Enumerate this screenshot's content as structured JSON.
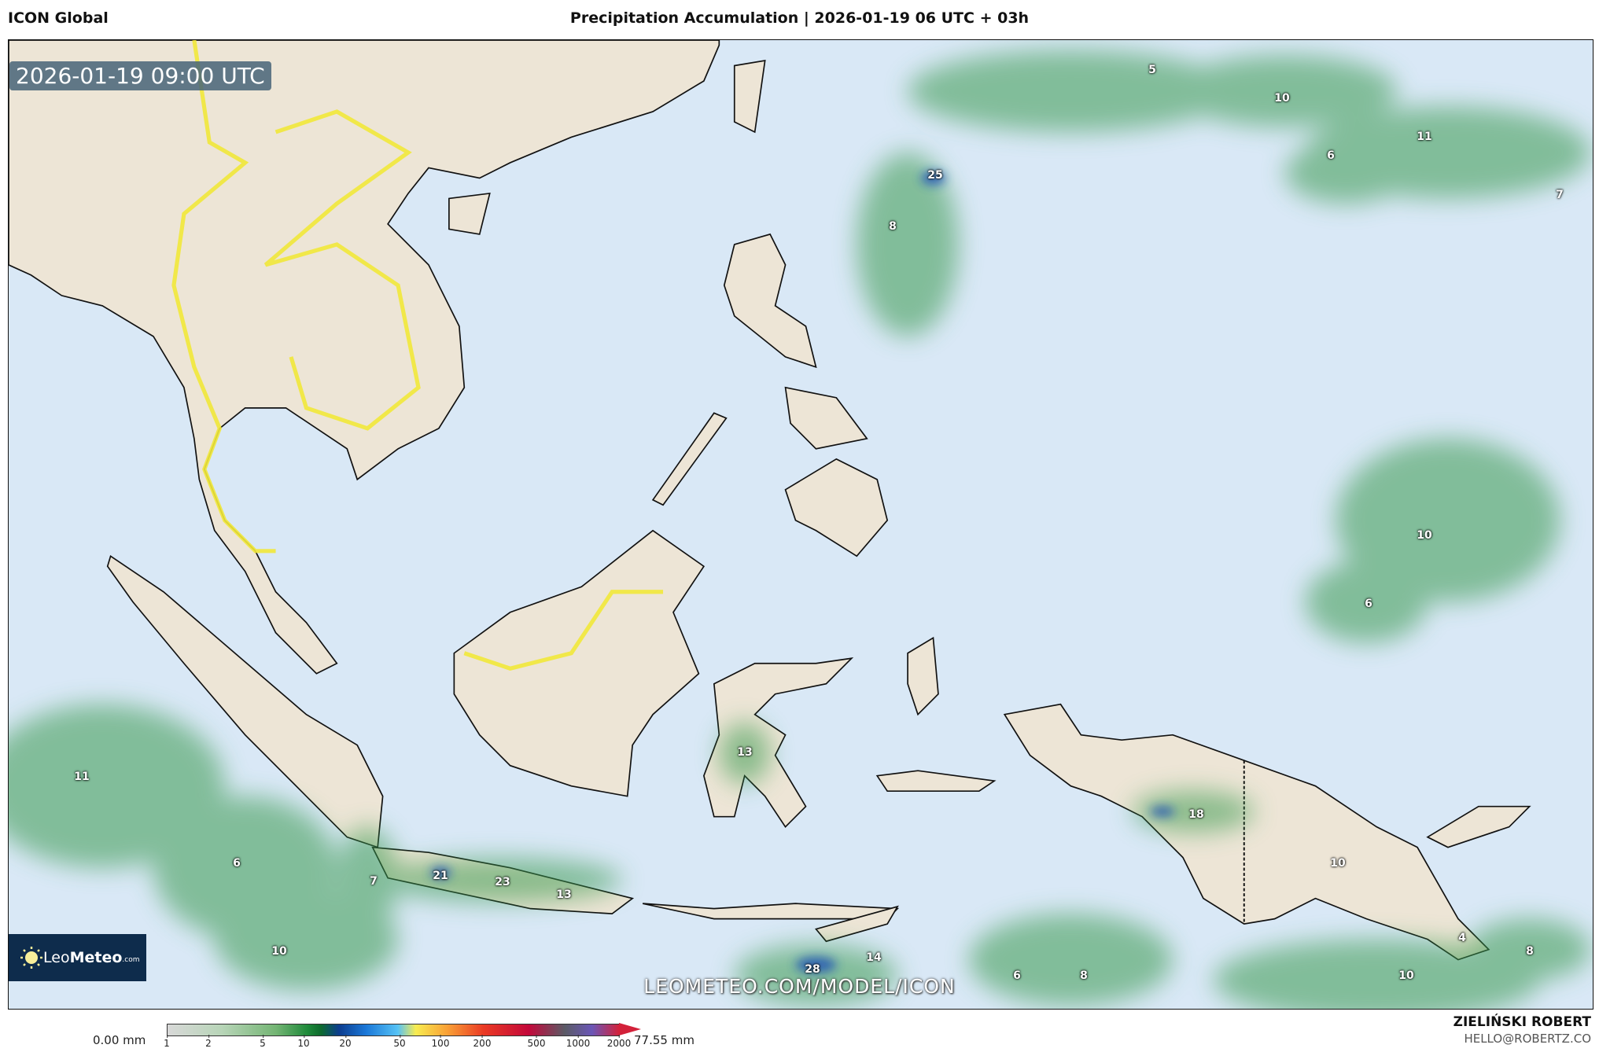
{
  "header": {
    "model": "ICON Global",
    "title": "Precipitation Accumulation | 2026-01-19 06 UTC + 03h"
  },
  "map": {
    "valid_time": "2026-01-19 09:00 UTC",
    "watermark": "LEOMETEO.COM/MODEL/ICON",
    "logo": {
      "text_light": "Leo",
      "text_bold": "Meteo",
      "text_small": ".com"
    },
    "colors": {
      "ocean": "#d9e8f6",
      "land": "#ede5d6",
      "precip": "#3a9a50",
      "border_highlight": "#f1e83a"
    },
    "precip_labels": [
      {
        "value": "5"
      },
      {
        "value": "10"
      },
      {
        "value": "11"
      },
      {
        "value": "6"
      },
      {
        "value": "7"
      },
      {
        "value": "25"
      },
      {
        "value": "8"
      },
      {
        "value": "10"
      },
      {
        "value": "6"
      },
      {
        "value": "11"
      },
      {
        "value": "6"
      },
      {
        "value": "10"
      },
      {
        "value": "7"
      },
      {
        "value": "21"
      },
      {
        "value": "23"
      },
      {
        "value": "13"
      },
      {
        "value": "13"
      },
      {
        "value": "18"
      },
      {
        "value": "10"
      },
      {
        "value": "4"
      },
      {
        "value": "8"
      },
      {
        "value": "10"
      },
      {
        "value": "6"
      },
      {
        "value": "8"
      },
      {
        "value": "28"
      },
      {
        "value": "14"
      }
    ]
  },
  "legend": {
    "min_label": "0.00 mm",
    "max_label": "77.55 mm",
    "ticks": [
      "1",
      "2",
      "5",
      "10",
      "20",
      "50",
      "100",
      "200",
      "500",
      "1000",
      "2000"
    ]
  },
  "footer": {
    "author": "ZIELIŃSKI ROBERT",
    "email": "HELLO@ROBERTZ.CO"
  }
}
